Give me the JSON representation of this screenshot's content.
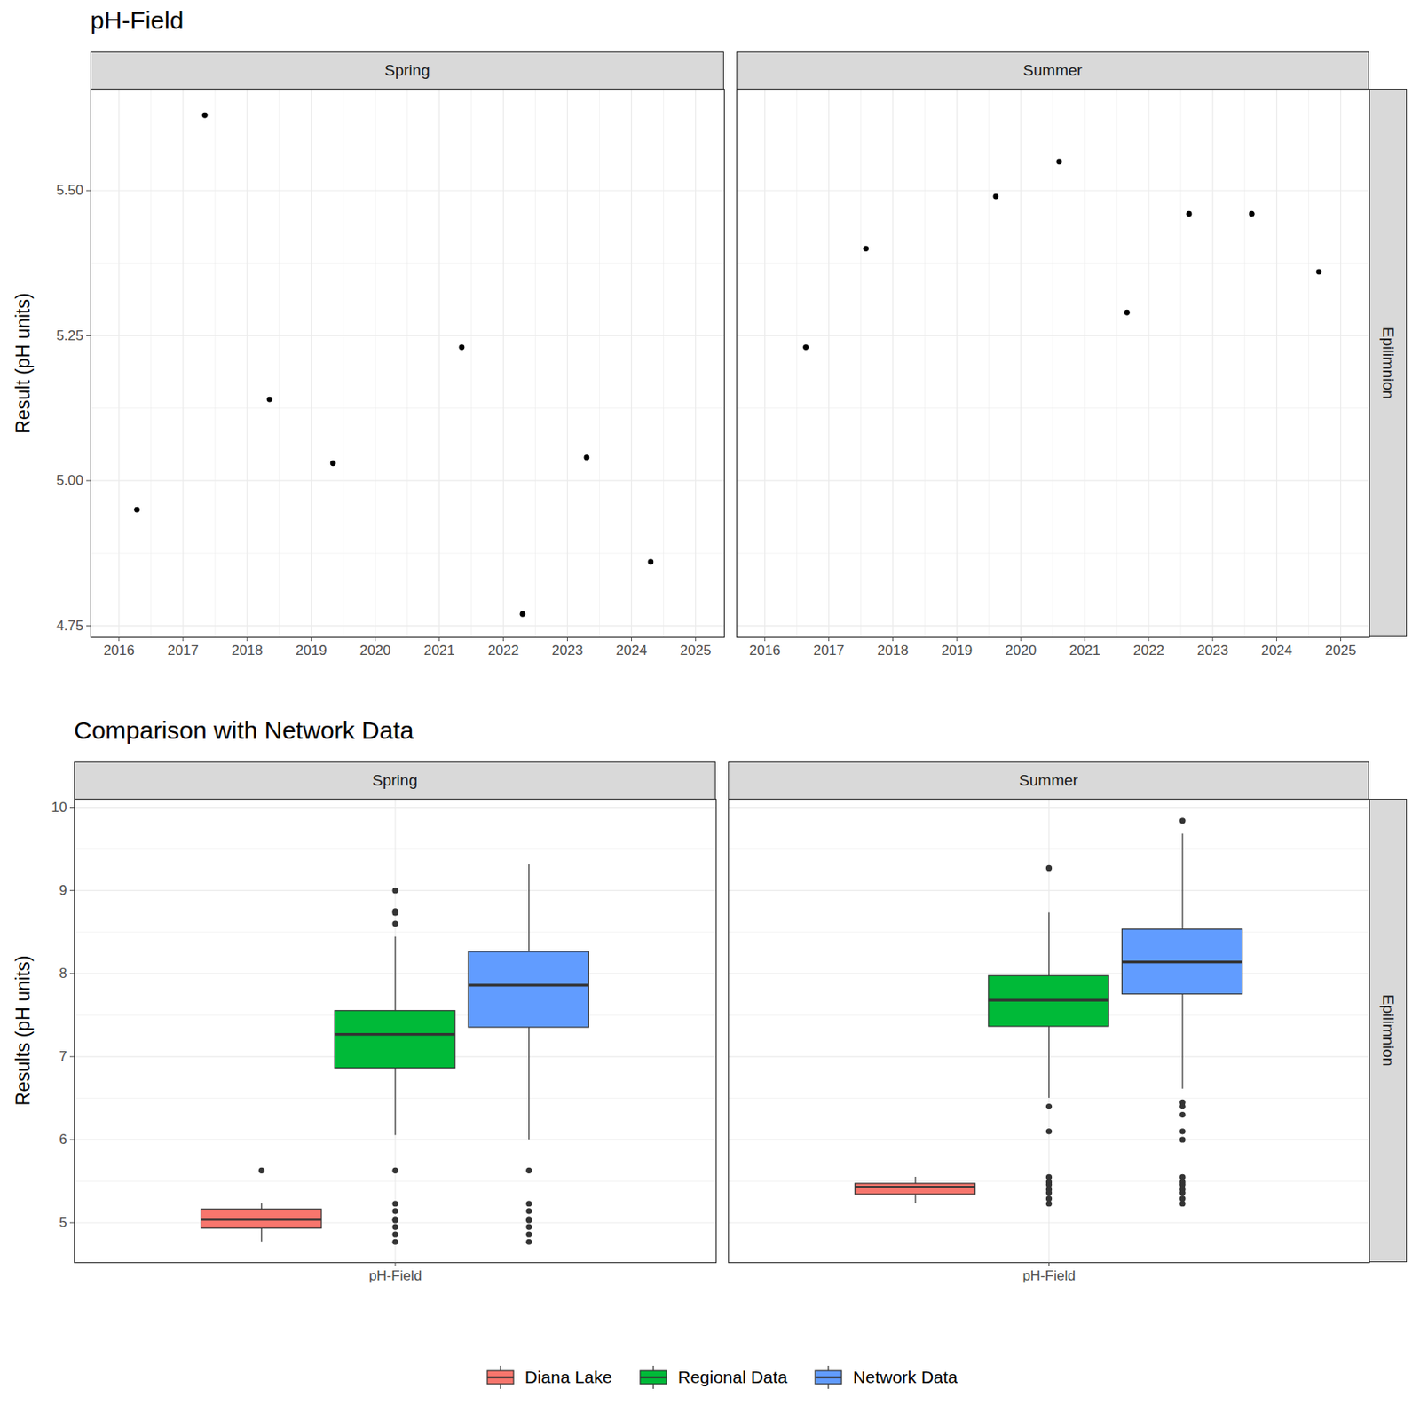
{
  "chart_data": [
    {
      "type": "scatter",
      "title": "pH-Field",
      "ylabel": "Result (pH units)",
      "row_label": "Epilimnion",
      "color": "#000000",
      "marker": "circle",
      "grid": true,
      "xlim": [
        2015.56,
        2025.45
      ],
      "xticks": [
        2016,
        2017,
        2018,
        2019,
        2020,
        2021,
        2022,
        2023,
        2024,
        2025
      ],
      "ylim": [
        4.73,
        5.675
      ],
      "yticks": [
        4.75,
        {
          "value": 5,
          "label": "5.00"
        },
        5.25,
        {
          "value": 5.5,
          "label": "5.50"
        }
      ],
      "facets": [
        {
          "name": "Spring",
          "x": [
            2016.28,
            2017.34,
            2018.35,
            2019.34,
            2021.35,
            2022.3,
            2023.3,
            2024.3
          ],
          "values": [
            4.95,
            5.63,
            5.14,
            5.03,
            5.23,
            4.77,
            5.04,
            4.86
          ]
        },
        {
          "name": "Summer",
          "x": [
            2016.64,
            2017.58,
            2019.61,
            2020.6,
            2021.66,
            2022.63,
            2023.61,
            2024.66
          ],
          "values": [
            5.23,
            5.4,
            5.49,
            5.55,
            5.29,
            5.46,
            5.46,
            5.36
          ]
        }
      ]
    },
    {
      "type": "box",
      "title": "Comparison with Network Data",
      "ylabel": "Results (pH units)",
      "row_label": "Epilimnion",
      "categories": [
        "pH-Field"
      ],
      "grid": true,
      "legend": "bottom",
      "ylim": [
        4.52,
        10.1
      ],
      "yticks": [
        5,
        6,
        7,
        8,
        9,
        10
      ],
      "series": [
        {
          "name": "Diana Lake",
          "color": "#F8766D"
        },
        {
          "name": "Regional Data",
          "color": "#00BA38"
        },
        {
          "name": "Network Data",
          "color": "#619CFF"
        }
      ],
      "facets": [
        {
          "name": "Spring",
          "boxes": [
            {
              "q1": 4.93,
              "median": 5.04,
              "q3": 5.16,
              "whisker_low": 4.77,
              "whisker_high": 5.23,
              "outliers": [
                5.63
              ]
            },
            {
              "q1": 6.86,
              "median": 7.27,
              "q3": 7.55,
              "whisker_low": 6.05,
              "whisker_high": 8.44,
              "outliers": [
                9.0,
                8.75,
                8.73,
                8.6,
                5.63,
                5.23,
                5.14,
                5.04,
                5.03,
                4.95,
                4.86,
                4.77
              ]
            },
            {
              "q1": 7.35,
              "median": 7.86,
              "q3": 8.26,
              "whisker_low": 6.0,
              "whisker_high": 9.31,
              "outliers": [
                5.63,
                5.23,
                5.14,
                5.04,
                5.03,
                4.95,
                4.86,
                4.77
              ]
            }
          ]
        },
        {
          "name": "Summer",
          "boxes": [
            {
              "q1": 5.34,
              "median": 5.43,
              "q3": 5.47,
              "whisker_low": 5.23,
              "whisker_high": 5.55,
              "outliers": []
            },
            {
              "q1": 7.36,
              "median": 7.68,
              "q3": 7.97,
              "whisker_low": 6.5,
              "whisker_high": 8.73,
              "outliers": [
                9.27,
                6.4,
                6.1,
                5.55,
                5.49,
                5.46,
                5.4,
                5.36,
                5.29,
                5.23
              ]
            },
            {
              "q1": 7.75,
              "median": 8.14,
              "q3": 8.53,
              "whisker_low": 6.61,
              "whisker_high": 9.68,
              "outliers": [
                9.84,
                6.45,
                6.4,
                6.3,
                6.1,
                6.0,
                5.55,
                5.49,
                5.46,
                5.4,
                5.36,
                5.29,
                5.23
              ]
            }
          ]
        }
      ]
    }
  ]
}
